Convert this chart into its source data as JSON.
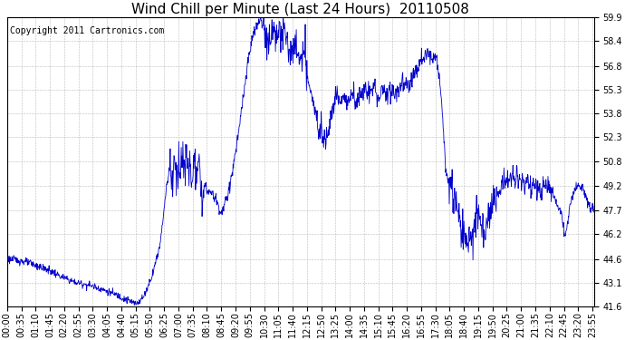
{
  "title": "Wind Chill per Minute (Last 24 Hours)  20110508",
  "copyright": "Copyright 2011 Cartronics.com",
  "line_color": "#0000cc",
  "bg_color": "#ffffff",
  "grid_color": "#aaaaaa",
  "border_color": "#000000",
  "yticks": [
    41.6,
    43.1,
    44.6,
    46.2,
    47.7,
    49.2,
    50.8,
    52.3,
    53.8,
    55.3,
    56.8,
    58.4,
    59.9
  ],
  "ymin": 41.6,
  "ymax": 59.9,
  "title_fontsize": 11,
  "copyright_fontsize": 7,
  "tick_fontsize": 7,
  "figwidth": 6.9,
  "figheight": 3.75,
  "dpi": 100
}
